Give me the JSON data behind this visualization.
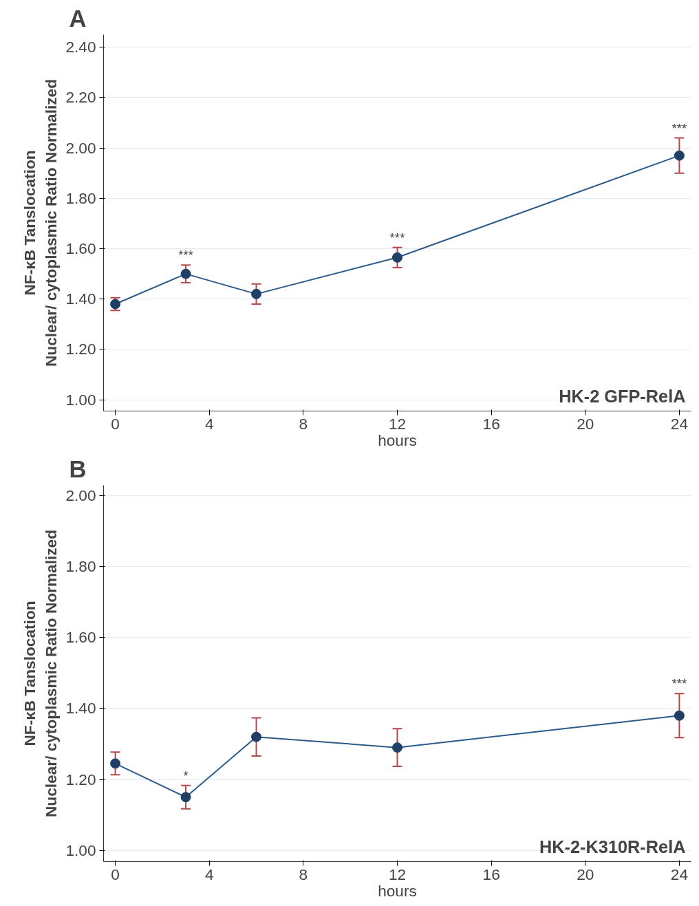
{
  "chart_data": [
    {
      "type": "line",
      "title": "A",
      "xlabel": "hours",
      "ylabel": "NF-κB Tanslocation\nNuclear/ cytoplasmic Ratio Normalized",
      "x": [
        0,
        3,
        6,
        12,
        24
      ],
      "series": [
        {
          "color": "#2b5a8c",
          "values": [
            1.38,
            1.5,
            1.42,
            1.565,
            1.97
          ],
          "errors": [
            0.025,
            0.035,
            0.04,
            0.04,
            0.07
          ]
        }
      ],
      "marker": "circle",
      "line_style": "solid",
      "grid": "y",
      "xlim": [
        -0.5,
        24.5
      ],
      "xticks": [
        0,
        4,
        8,
        12,
        16,
        20,
        24
      ],
      "ylim": [
        0.955,
        2.45
      ],
      "yticks": [
        {
          "value": 1.0,
          "label": "1.00"
        },
        {
          "value": 1.2,
          "label": "1.20"
        },
        {
          "value": 1.4,
          "label": "1.40"
        },
        {
          "value": 1.6,
          "label": "1.60"
        },
        {
          "value": 1.8,
          "label": "1.80"
        },
        {
          "value": 2.0,
          "label": "2.00"
        },
        {
          "value": 2.2,
          "label": "2.20"
        },
        {
          "value": 2.4,
          "label": "2.40"
        }
      ],
      "annotations": [
        {
          "text": "***",
          "x": 3,
          "y": 1.535
        },
        {
          "text": "***",
          "x": 12,
          "y": 1.605
        },
        {
          "text": "***",
          "x": 24,
          "y": 2.04
        },
        "HK-2 GFP-RelA"
      ]
    },
    {
      "type": "line",
      "title": "B",
      "xlabel": "hours",
      "ylabel": "NF-κB Tanslocation\nNuclear/ cytoplasmic Ratio Normalized",
      "x": [
        0,
        3,
        6,
        12,
        24
      ],
      "series": [
        {
          "color": "#2b5a8c",
          "values": [
            1.245,
            1.15,
            1.32,
            1.29,
            1.38
          ],
          "errors": [
            0.032,
            0.033,
            0.054,
            0.053,
            0.062
          ]
        }
      ],
      "marker": "circle",
      "line_style": "solid",
      "grid": "y",
      "xlim": [
        -0.5,
        24.5
      ],
      "xticks": [
        0,
        4,
        8,
        12,
        16,
        20,
        24
      ],
      "ylim": [
        0.968,
        2.03
      ],
      "yticks": [
        {
          "value": 1.0,
          "label": "1.00"
        },
        {
          "value": 1.2,
          "label": "1.20"
        },
        {
          "value": 1.4,
          "label": "1.40"
        },
        {
          "value": 1.6,
          "label": "1.60"
        },
        {
          "value": 1.8,
          "label": "1.80"
        },
        {
          "value": 2.0,
          "label": "2.00"
        }
      ],
      "annotations": [
        {
          "text": "*",
          "x": 3,
          "y": 1.183
        },
        {
          "text": "***",
          "x": 24,
          "y": 1.442
        },
        "HK-2-K310R-RelA"
      ]
    }
  ]
}
